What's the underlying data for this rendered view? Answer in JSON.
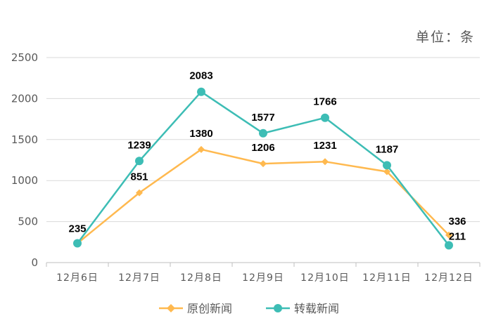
{
  "chart_data": {
    "type": "line",
    "unit_note": "单位：条",
    "categories": [
      "12月6日",
      "12月7日",
      "12月8日",
      "12月9日",
      "12月10日",
      "12月11日",
      "12月12日"
    ],
    "yticks": [
      0,
      500,
      1000,
      1500,
      2000,
      2500
    ],
    "ylim": [
      0,
      2500
    ],
    "grid": true,
    "legend_position": "bottom",
    "series": [
      {
        "name": "原创新闻",
        "values": [
          235,
          851,
          1380,
          1206,
          1231,
          1109,
          336
        ],
        "labels": [
          "",
          "851",
          "1380",
          "1206",
          "1231",
          "",
          "336"
        ],
        "color": "#FFB94F",
        "marker": "diamond"
      },
      {
        "name": "转载新闻",
        "values": [
          235,
          1239,
          2083,
          1577,
          1766,
          1187,
          211
        ],
        "labels": [
          "235",
          "1239",
          "2083",
          "1577",
          "1766",
          "1187",
          "211"
        ],
        "color": "#3DBDB5",
        "marker": "circle"
      }
    ]
  }
}
